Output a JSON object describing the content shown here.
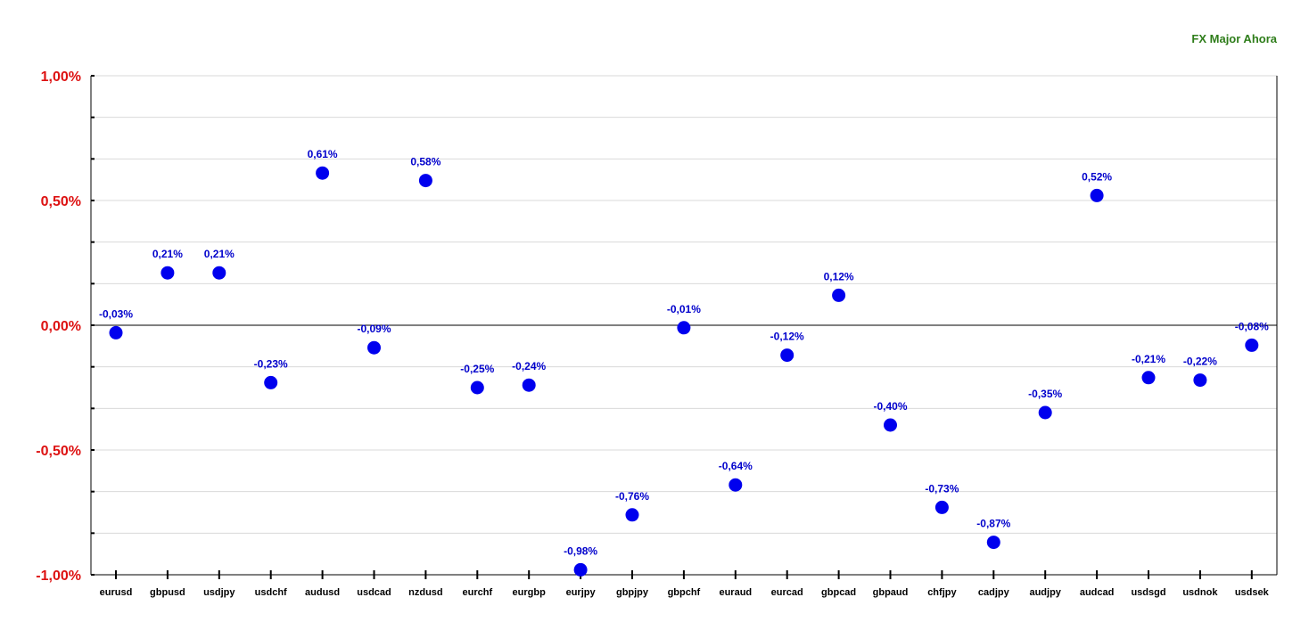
{
  "chart_data": {
    "type": "scatter",
    "title": "FX Major Ahora",
    "categories": [
      "eurusd",
      "gbpusd",
      "usdjpy",
      "usdchf",
      "audusd",
      "usdcad",
      "nzdusd",
      "eurchf",
      "eurgbp",
      "eurjpy",
      "gbpjpy",
      "gbpchf",
      "euraud",
      "eurcad",
      "gbpcad",
      "gbpaud",
      "chfjpy",
      "cadjpy",
      "audjpy",
      "audcad",
      "usdsgd",
      "usdnok",
      "usdsek"
    ],
    "values": [
      -0.03,
      0.21,
      0.21,
      -0.23,
      0.61,
      -0.09,
      0.58,
      -0.25,
      -0.24,
      -0.98,
      -0.76,
      -0.01,
      -0.64,
      -0.12,
      0.12,
      -0.4,
      -0.73,
      -0.87,
      -0.35,
      0.52,
      -0.21,
      -0.22,
      -0.08
    ],
    "data_labels": [
      "-0,03%",
      "0,21%",
      "0,21%",
      "-0,23%",
      "0,61%",
      "-0,09%",
      "0,58%",
      "-0,25%",
      "-0,24%",
      "-0,98%",
      "-0,76%",
      "-0,01%",
      "-0,64%",
      "-0,12%",
      "0,12%",
      "-0,40%",
      "-0,73%",
      "-0,87%",
      "-0,35%",
      "0,52%",
      "-0,21%",
      "-0,22%",
      "-0,08%"
    ],
    "ylim": [
      -1.0,
      1.0
    ],
    "yticks": [
      1.0,
      0.5,
      0.0,
      -0.5,
      -1.0
    ],
    "ytick_labels": [
      "1,00%",
      "0,50%",
      "0,00%",
      "-0,50%",
      "-1,00%"
    ],
    "grid": true,
    "colors": {
      "marker": "#0000ee",
      "data_label": "#0000cc",
      "ytick_label": "#dd1111",
      "title": "#2e7d1a",
      "grid": "#d9d9d9",
      "axis": "#000000"
    }
  }
}
